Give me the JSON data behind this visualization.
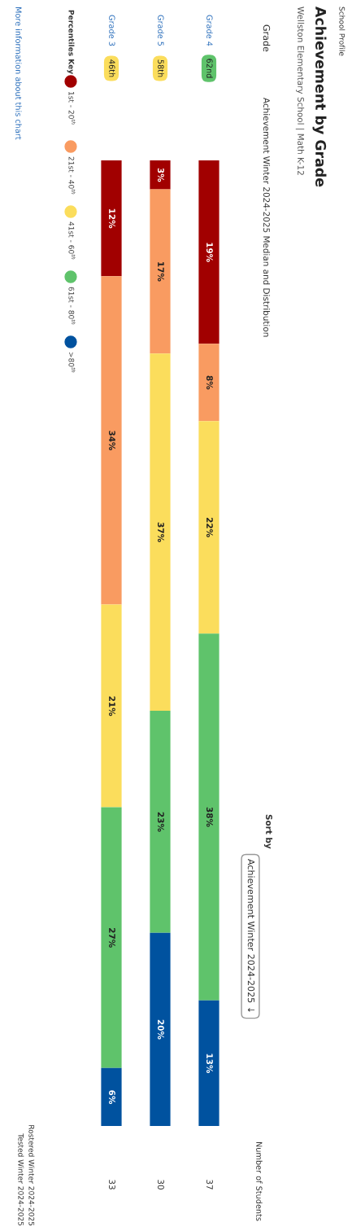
{
  "chart_data": {
    "type": "bar",
    "stacked": true,
    "title": "Achievement by Grade",
    "subtitle": "Wellston Elementary School | Math K-12",
    "legend_title": "Percentiles Key",
    "legend": "left",
    "categories": [
      "Grade 3",
      "Grade 5",
      "Grade 4"
    ],
    "series": [
      {
        "name": "1st - 20$^{th}$",
        "color": "#a10000",
        "values": [
          12,
          3,
          19
        ],
        "value_labels": [
          "12%",
          "3%",
          "19%"
        ]
      },
      {
        "name": "21st - 40$^{th}$",
        "color": "#f99b61",
        "values": [
          34,
          17,
          8
        ],
        "value_labels": [
          "34%",
          "17%",
          "8%"
        ]
      },
      {
        "name": "41st - 60$^{th}$",
        "color": "#fbdd5c",
        "values": [
          21,
          37,
          22
        ],
        "value_labels": [
          "21%",
          "37%",
          "22%"
        ]
      },
      {
        "name": "61st - 80$^{th}$",
        "color": "#5fc36b",
        "values": [
          27,
          23,
          38
        ],
        "value_labels": [
          "27%",
          "23%",
          "38%"
        ]
      },
      {
        "name": ">80$^{th}$",
        "color": "#00529f",
        "values": [
          6,
          20,
          13
        ],
        "value_labels": [
          "6%",
          "20%",
          "13%"
        ]
      }
    ],
    "annotations": [
      "School Profile",
      "Grade",
      "Achievement Winter 2024-2025 Median and Distribution",
      "Sort by",
      "Achievement Winter 2024-2025 ↓",
      "Number of Students",
      "46th",
      "58th",
      "62nd",
      "33",
      "30",
      "37",
      "More information about this chart",
      "Rostered Winter 2024-2025",
      "Tested Winter 2024-2025"
    ]
  }
}
